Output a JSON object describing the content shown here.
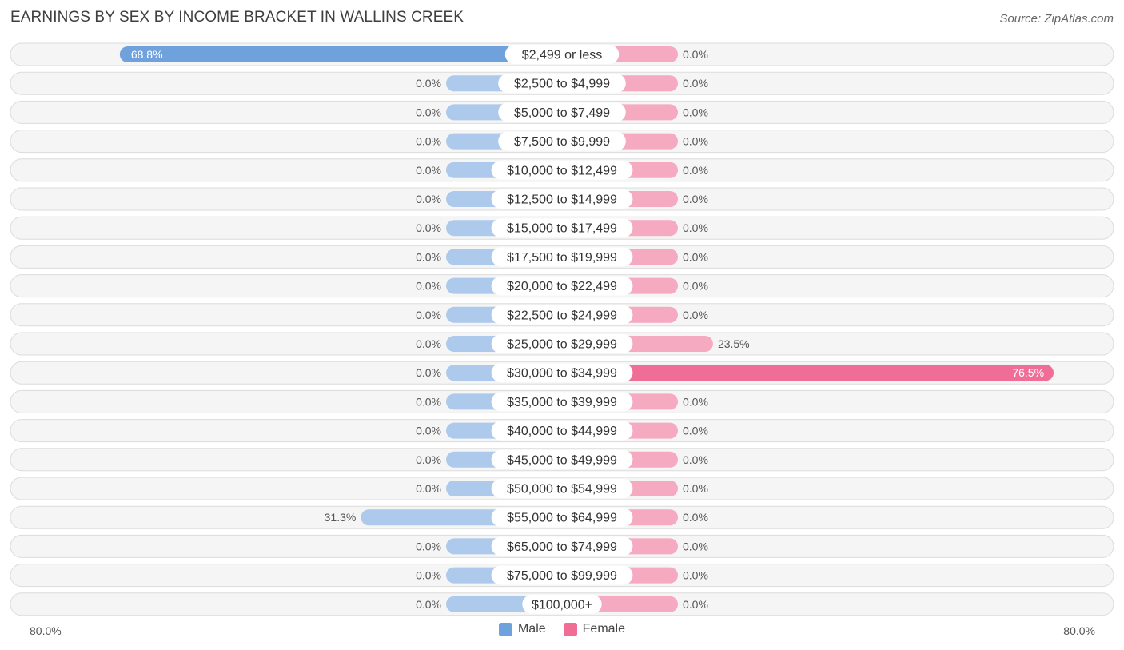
{
  "title": "EARNINGS BY SEX BY INCOME BRACKET IN WALLINS CREEK",
  "source": "Source: ZipAtlas.com",
  "colors": {
    "male": "#6fa1dd",
    "male_light": "#adc9ec",
    "female": "#f06d96",
    "female_light": "#f6aac2",
    "row_bg": "#efefef"
  },
  "legend": {
    "male_label": "Male",
    "female_label": "Female"
  },
  "axis": {
    "left_label": "80.0%",
    "right_label": "80.0%"
  },
  "chart_data": {
    "type": "bar",
    "orientation": "horizontal-diverging",
    "title": "EARNINGS BY SEX BY INCOME BRACKET IN WALLINS CREEK",
    "xlim": [
      -80,
      80
    ],
    "legend_position": "bottom-center",
    "categories": [
      "$2,499 or less",
      "$2,500 to $4,999",
      "$5,000 to $7,499",
      "$7,500 to $9,999",
      "$10,000 to $12,499",
      "$12,500 to $14,999",
      "$15,000 to $17,499",
      "$17,500 to $19,999",
      "$20,000 to $22,499",
      "$22,500 to $24,999",
      "$25,000 to $29,999",
      "$30,000 to $34,999",
      "$35,000 to $39,999",
      "$40,000 to $44,999",
      "$45,000 to $49,999",
      "$50,000 to $54,999",
      "$55,000 to $64,999",
      "$65,000 to $74,999",
      "$75,000 to $99,999",
      "$100,000+"
    ],
    "series": [
      {
        "name": "Male",
        "values": [
          68.8,
          0,
          0,
          0,
          0,
          0,
          0,
          0,
          0,
          0,
          0,
          0,
          0,
          0,
          0,
          0,
          31.3,
          0,
          0,
          0
        ],
        "labels": [
          "68.8%",
          "0.0%",
          "0.0%",
          "0.0%",
          "0.0%",
          "0.0%",
          "0.0%",
          "0.0%",
          "0.0%",
          "0.0%",
          "0.0%",
          "0.0%",
          "0.0%",
          "0.0%",
          "0.0%",
          "0.0%",
          "31.3%",
          "0.0%",
          "0.0%",
          "0.0%"
        ]
      },
      {
        "name": "Female",
        "values": [
          0,
          0,
          0,
          0,
          0,
          0,
          0,
          0,
          0,
          0,
          23.5,
          76.5,
          0,
          0,
          0,
          0,
          0,
          0,
          0,
          0
        ],
        "labels": [
          "0.0%",
          "0.0%",
          "0.0%",
          "0.0%",
          "0.0%",
          "0.0%",
          "0.0%",
          "0.0%",
          "0.0%",
          "0.0%",
          "23.5%",
          "76.5%",
          "0.0%",
          "0.0%",
          "0.0%",
          "0.0%",
          "0.0%",
          "0.0%",
          "0.0%",
          "0.0%"
        ]
      }
    ]
  }
}
